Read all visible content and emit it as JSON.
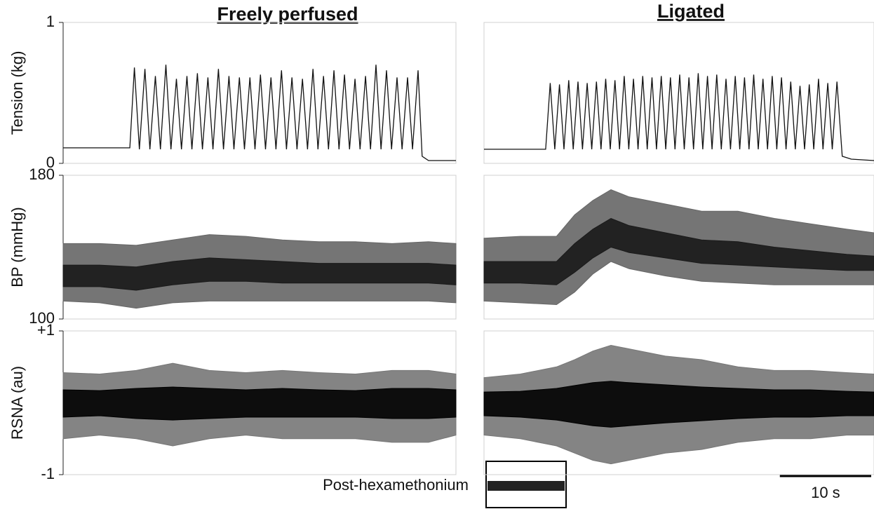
{
  "columns": [
    {
      "title": "Freely perfused"
    },
    {
      "title": "Ligated"
    }
  ],
  "chart_data": [
    {
      "type": "line",
      "ylabel": "Tension (kg)",
      "ylim": [
        0,
        1
      ],
      "yticks": [
        0,
        1
      ],
      "xlim": [
        0,
        43
      ],
      "color": "#111111",
      "x": [
        0,
        7.3,
        7.8,
        8.35,
        8.95,
        9.5,
        10.1,
        10.65,
        11.25,
        11.8,
        12.4,
        12.95,
        13.55,
        14.1,
        14.7,
        15.25,
        15.85,
        16.4,
        17.0,
        17.55,
        18.15,
        18.7,
        19.3,
        19.85,
        20.45,
        21.0,
        21.6,
        22.15,
        22.75,
        23.3,
        23.9,
        24.45,
        25.05,
        25.6,
        26.2,
        26.75,
        27.35,
        27.9,
        28.5,
        29.05,
        29.65,
        30.2,
        30.8,
        31.35,
        31.95,
        32.5,
        33.1,
        33.65,
        34.25,
        34.8,
        35.4,
        35.95,
        36.55,
        37.1,
        37.7,
        38.25,
        38.85,
        39.3,
        40,
        43
      ],
      "values": [
        0.11,
        0.11,
        0.68,
        0.1,
        0.67,
        0.1,
        0.62,
        0.1,
        0.7,
        0.1,
        0.6,
        0.1,
        0.62,
        0.1,
        0.64,
        0.1,
        0.61,
        0.1,
        0.67,
        0.1,
        0.62,
        0.1,
        0.61,
        0.1,
        0.61,
        0.1,
        0.63,
        0.1,
        0.61,
        0.1,
        0.66,
        0.1,
        0.61,
        0.1,
        0.6,
        0.1,
        0.67,
        0.1,
        0.62,
        0.1,
        0.66,
        0.1,
        0.63,
        0.1,
        0.6,
        0.1,
        0.62,
        0.1,
        0.7,
        0.1,
        0.66,
        0.1,
        0.61,
        0.1,
        0.61,
        0.1,
        0.66,
        0.05,
        0.02,
        0.02
      ]
    },
    {
      "type": "line",
      "ylim": [
        0,
        1
      ],
      "xlim": [
        0,
        43
      ],
      "color": "#111111",
      "x": [
        0,
        6.8,
        7.3,
        7.8,
        8.32,
        8.82,
        9.34,
        9.84,
        10.36,
        10.86,
        11.38,
        11.88,
        12.4,
        12.9,
        13.42,
        13.92,
        14.44,
        14.94,
        15.46,
        15.96,
        16.48,
        16.98,
        17.5,
        18.0,
        18.52,
        19.02,
        19.54,
        20.04,
        20.56,
        21.06,
        21.58,
        22.08,
        22.6,
        23.1,
        23.62,
        24.12,
        24.64,
        25.14,
        25.66,
        26.16,
        26.68,
        27.18,
        27.7,
        28.2,
        28.72,
        29.22,
        29.74,
        30.24,
        30.76,
        31.26,
        31.78,
        32.28,
        32.8,
        33.3,
        33.82,
        34.32,
        34.84,
        35.34,
        35.86,
        36.36,
        36.88,
        37.38,
        37.9,
        38.4,
        38.92,
        39.5,
        40.5,
        43
      ],
      "values": [
        0.1,
        0.1,
        0.57,
        0.1,
        0.56,
        0.1,
        0.59,
        0.1,
        0.58,
        0.1,
        0.57,
        0.1,
        0.58,
        0.1,
        0.6,
        0.1,
        0.59,
        0.1,
        0.62,
        0.1,
        0.6,
        0.1,
        0.62,
        0.1,
        0.61,
        0.1,
        0.62,
        0.1,
        0.61,
        0.1,
        0.63,
        0.1,
        0.61,
        0.1,
        0.64,
        0.1,
        0.62,
        0.1,
        0.63,
        0.1,
        0.6,
        0.1,
        0.62,
        0.1,
        0.61,
        0.1,
        0.63,
        0.1,
        0.6,
        0.1,
        0.62,
        0.1,
        0.61,
        0.1,
        0.58,
        0.1,
        0.55,
        0.1,
        0.56,
        0.1,
        0.6,
        0.1,
        0.57,
        0.1,
        0.58,
        0.05,
        0.03,
        0.02
      ]
    },
    {
      "type": "band",
      "ylabel": "BP (mmHg)",
      "ylim": [
        100,
        180
      ],
      "yticks": [
        100,
        180
      ],
      "xlim": [
        0,
        43
      ],
      "x": [
        0,
        4,
        8,
        12,
        16,
        20,
        24,
        28,
        32,
        36,
        40,
        43
      ],
      "series": [
        {
          "color": "#666666",
          "upper": [
            142,
            142,
            141,
            144,
            147,
            146,
            144,
            143,
            143,
            142,
            143,
            142
          ],
          "lower": [
            110,
            109,
            106,
            109,
            110,
            110,
            110,
            110,
            110,
            110,
            110,
            109
          ]
        },
        {
          "color": "#1a1a1a",
          "upper": [
            130,
            130,
            129,
            132,
            134,
            133,
            132,
            131,
            131,
            131,
            131,
            130
          ],
          "lower": [
            118,
            118,
            116,
            119,
            121,
            121,
            120,
            120,
            120,
            120,
            120,
            119
          ]
        }
      ]
    },
    {
      "type": "band",
      "ylim": [
        100,
        180
      ],
      "xlim": [
        0,
        43
      ],
      "x": [
        0,
        4,
        8,
        10,
        12,
        14,
        16,
        20,
        24,
        28,
        32,
        36,
        40,
        43
      ],
      "series": [
        {
          "color": "#666666",
          "upper": [
            145,
            146,
            146,
            158,
            166,
            172,
            168,
            164,
            160,
            160,
            156,
            153,
            150,
            148
          ],
          "lower": [
            110,
            109,
            108,
            115,
            125,
            132,
            128,
            124,
            121,
            120,
            119,
            119,
            119,
            119
          ]
        },
        {
          "color": "#1a1a1a",
          "upper": [
            132,
            132,
            132,
            142,
            150,
            156,
            152,
            148,
            144,
            143,
            140,
            138,
            136,
            135
          ],
          "lower": [
            120,
            120,
            119,
            126,
            134,
            140,
            137,
            134,
            131,
            130,
            129,
            128,
            127,
            127
          ]
        }
      ]
    },
    {
      "type": "band",
      "ylabel": "RSNA (au)",
      "ylim": [
        -1,
        1
      ],
      "yticks": [
        {
          "value": -1,
          "label": "-1"
        },
        {
          "value": 1,
          "label": "+1"
        }
      ],
      "xlim": [
        0,
        43
      ],
      "x": [
        0,
        4,
        8,
        12,
        16,
        20,
        24,
        28,
        32,
        36,
        40,
        43
      ],
      "series": [
        {
          "color": "#777777",
          "upper": [
            0.42,
            0.4,
            0.45,
            0.55,
            0.45,
            0.42,
            0.45,
            0.42,
            0.4,
            0.45,
            0.45,
            0.4
          ],
          "lower": [
            -0.5,
            -0.45,
            -0.5,
            -0.6,
            -0.5,
            -0.45,
            -0.5,
            -0.5,
            -0.5,
            -0.55,
            -0.55,
            -0.45
          ]
        },
        {
          "color": "#000000",
          "upper": [
            0.18,
            0.17,
            0.2,
            0.22,
            0.2,
            0.18,
            0.2,
            0.18,
            0.17,
            0.2,
            0.2,
            0.18
          ],
          "lower": [
            -0.2,
            -0.18,
            -0.22,
            -0.24,
            -0.22,
            -0.2,
            -0.2,
            -0.2,
            -0.2,
            -0.22,
            -0.22,
            -0.2
          ]
        }
      ]
    },
    {
      "type": "band",
      "ylim": [
        -1,
        1
      ],
      "xlim": [
        0,
        43
      ],
      "x": [
        0,
        4,
        8,
        10,
        12,
        14,
        16,
        20,
        24,
        28,
        32,
        36,
        40,
        43
      ],
      "series": [
        {
          "color": "#777777",
          "upper": [
            0.35,
            0.4,
            0.5,
            0.6,
            0.72,
            0.8,
            0.75,
            0.65,
            0.6,
            0.5,
            0.45,
            0.45,
            0.42,
            0.4
          ],
          "lower": [
            -0.45,
            -0.5,
            -0.6,
            -0.7,
            -0.8,
            -0.85,
            -0.8,
            -0.7,
            -0.65,
            -0.55,
            -0.5,
            -0.5,
            -0.45,
            -0.45
          ]
        },
        {
          "color": "#000000",
          "upper": [
            0.15,
            0.16,
            0.2,
            0.24,
            0.28,
            0.3,
            0.28,
            0.25,
            0.22,
            0.2,
            0.18,
            0.18,
            0.16,
            0.15
          ],
          "lower": [
            -0.18,
            -0.2,
            -0.24,
            -0.28,
            -0.32,
            -0.34,
            -0.32,
            -0.28,
            -0.25,
            -0.22,
            -0.2,
            -0.2,
            -0.18,
            -0.18
          ]
        }
      ]
    }
  ],
  "inset_label": "Post-hexamethonium",
  "scale_bar": {
    "value": 10,
    "label": "10 s"
  }
}
